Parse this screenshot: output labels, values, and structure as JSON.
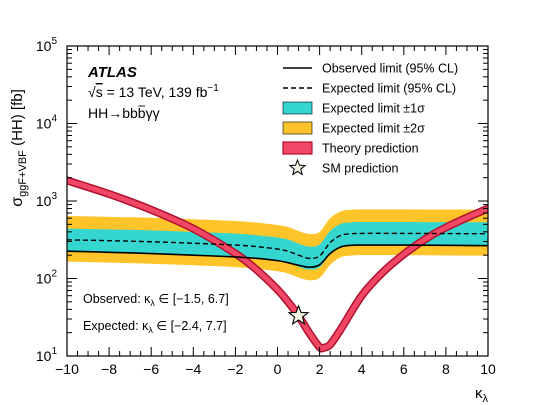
{
  "chart_data": {
    "type": "line",
    "xlabel_base": "κ",
    "xlabel_sub": "λ",
    "ylabel_base": "σ",
    "ylabel_sub": "ggF+VBF",
    "ylabel_rest": " (HH) [fb]",
    "x_range": [
      -10,
      10
    ],
    "y_range_log": [
      10,
      100000
    ],
    "y_scale": "log",
    "x_ticks": [
      -10,
      -8,
      -6,
      -4,
      -2,
      0,
      2,
      4,
      6,
      8,
      10
    ],
    "x_tick_labels": [
      "−10",
      "−8",
      "−6",
      "−4",
      "−2",
      "0",
      "2",
      "4",
      "6",
      "8",
      "10"
    ],
    "y_ticks": [
      10,
      100,
      1000,
      10000,
      100000
    ],
    "y_tick_exponents": [
      "1",
      "2",
      "3",
      "4",
      "5"
    ],
    "y_tick_base": "10",
    "annotations": {
      "atlas": "ATLAS",
      "energy_sqrt": "√",
      "energy_s": "s",
      "energy_text": " = 13 TeV, 139 fb",
      "energy_sup": "−1",
      "channel_main": "HH→bb",
      "channel_suffix": "γγ",
      "observed_prefix": "Observed: κ",
      "observed_sub": "λ",
      "observed_range": " ∈ [−1.5, 6.7]",
      "expected_prefix": "Expected: κ",
      "expected_sub": "λ",
      "expected_range": " ∈ [−2.4, 7.7]"
    },
    "legend": [
      {
        "label": "Observed limit (95% CL)",
        "style": "solid-line"
      },
      {
        "label": "Expected limit (95% CL)",
        "style": "dashed-line"
      },
      {
        "label": "Expected limit ±1σ",
        "style": "cyan-box"
      },
      {
        "label": "Expected limit ±2σ",
        "style": "orange-box"
      },
      {
        "label": "Theory prediction",
        "style": "red-box"
      },
      {
        "label": "SM prediction",
        "style": "star"
      }
    ],
    "legend_position": "top-right",
    "colors": {
      "band2": "#ffc42a",
      "band1": "#36d6d0",
      "theory_fill": "#f04766",
      "theory_edge": "#b0112e",
      "line": "#000000"
    },
    "series": [
      {
        "name": "Observed limit (95% CL)",
        "x": [
          -10,
          -8,
          -6,
          -4,
          -2,
          -1,
          0,
          0.5,
          1.0,
          1.5,
          2.0,
          2.5,
          3.0,
          3.5,
          4,
          6,
          8,
          10
        ],
        "y": [
          225,
          218,
          210,
          200,
          190,
          182,
          170,
          160,
          148,
          140,
          150,
          210,
          255,
          268,
          270,
          270,
          268,
          265
        ]
      },
      {
        "name": "Expected limit (95% CL)",
        "x": [
          -10,
          -8,
          -6,
          -4,
          -2,
          -1,
          0,
          0.5,
          1.0,
          1.5,
          2.0,
          2.5,
          3.0,
          3.5,
          4,
          6,
          8,
          10
        ],
        "y": [
          315,
          308,
          298,
          285,
          270,
          258,
          240,
          225,
          200,
          182,
          195,
          290,
          360,
          378,
          382,
          382,
          380,
          378
        ]
      },
      {
        "name": "Expected limit ±1σ",
        "x": [
          -10,
          -8,
          -6,
          -4,
          -2,
          -1,
          0,
          0.5,
          1.0,
          1.5,
          2.0,
          2.5,
          3.0,
          3.5,
          4,
          6,
          8,
          10
        ],
        "y_low": [
          225,
          218,
          212,
          203,
          192,
          183,
          170,
          160,
          142,
          130,
          140,
          205,
          255,
          268,
          272,
          272,
          270,
          268
        ],
        "y_high": [
          440,
          430,
          418,
          400,
          380,
          362,
          338,
          318,
          282,
          258,
          275,
          410,
          505,
          530,
          536,
          536,
          533,
          530
        ]
      },
      {
        "name": "Expected limit ±2σ",
        "x": [
          -10,
          -8,
          -6,
          -4,
          -2,
          -1,
          0,
          0.5,
          1.0,
          1.5,
          2.0,
          2.5,
          3.0,
          3.5,
          4,
          6,
          8,
          10
        ],
        "y_low": [
          165,
          160,
          155,
          148,
          140,
          133,
          124,
          116,
          103,
          95,
          102,
          150,
          188,
          197,
          200,
          200,
          198,
          197
        ],
        "y_high": [
          640,
          625,
          608,
          582,
          552,
          526,
          490,
          462,
          410,
          375,
          400,
          598,
          735,
          770,
          780,
          780,
          776,
          772
        ]
      },
      {
        "name": "Theory prediction",
        "x": [
          -10,
          -8,
          -6,
          -4,
          -2,
          -1,
          0,
          0.5,
          1.0,
          1.5,
          2.0,
          2.2,
          2.5,
          3.0,
          4,
          5,
          6,
          7,
          8,
          9,
          10
        ],
        "y": [
          1840,
          1230,
          770,
          440,
          210,
          130,
          72,
          50,
          33,
          20,
          13,
          12.8,
          14,
          22,
          60,
          120,
          205,
          320,
          455,
          610,
          800
        ]
      }
    ],
    "sm_point": {
      "x": 1.0,
      "y": 33
    }
  }
}
